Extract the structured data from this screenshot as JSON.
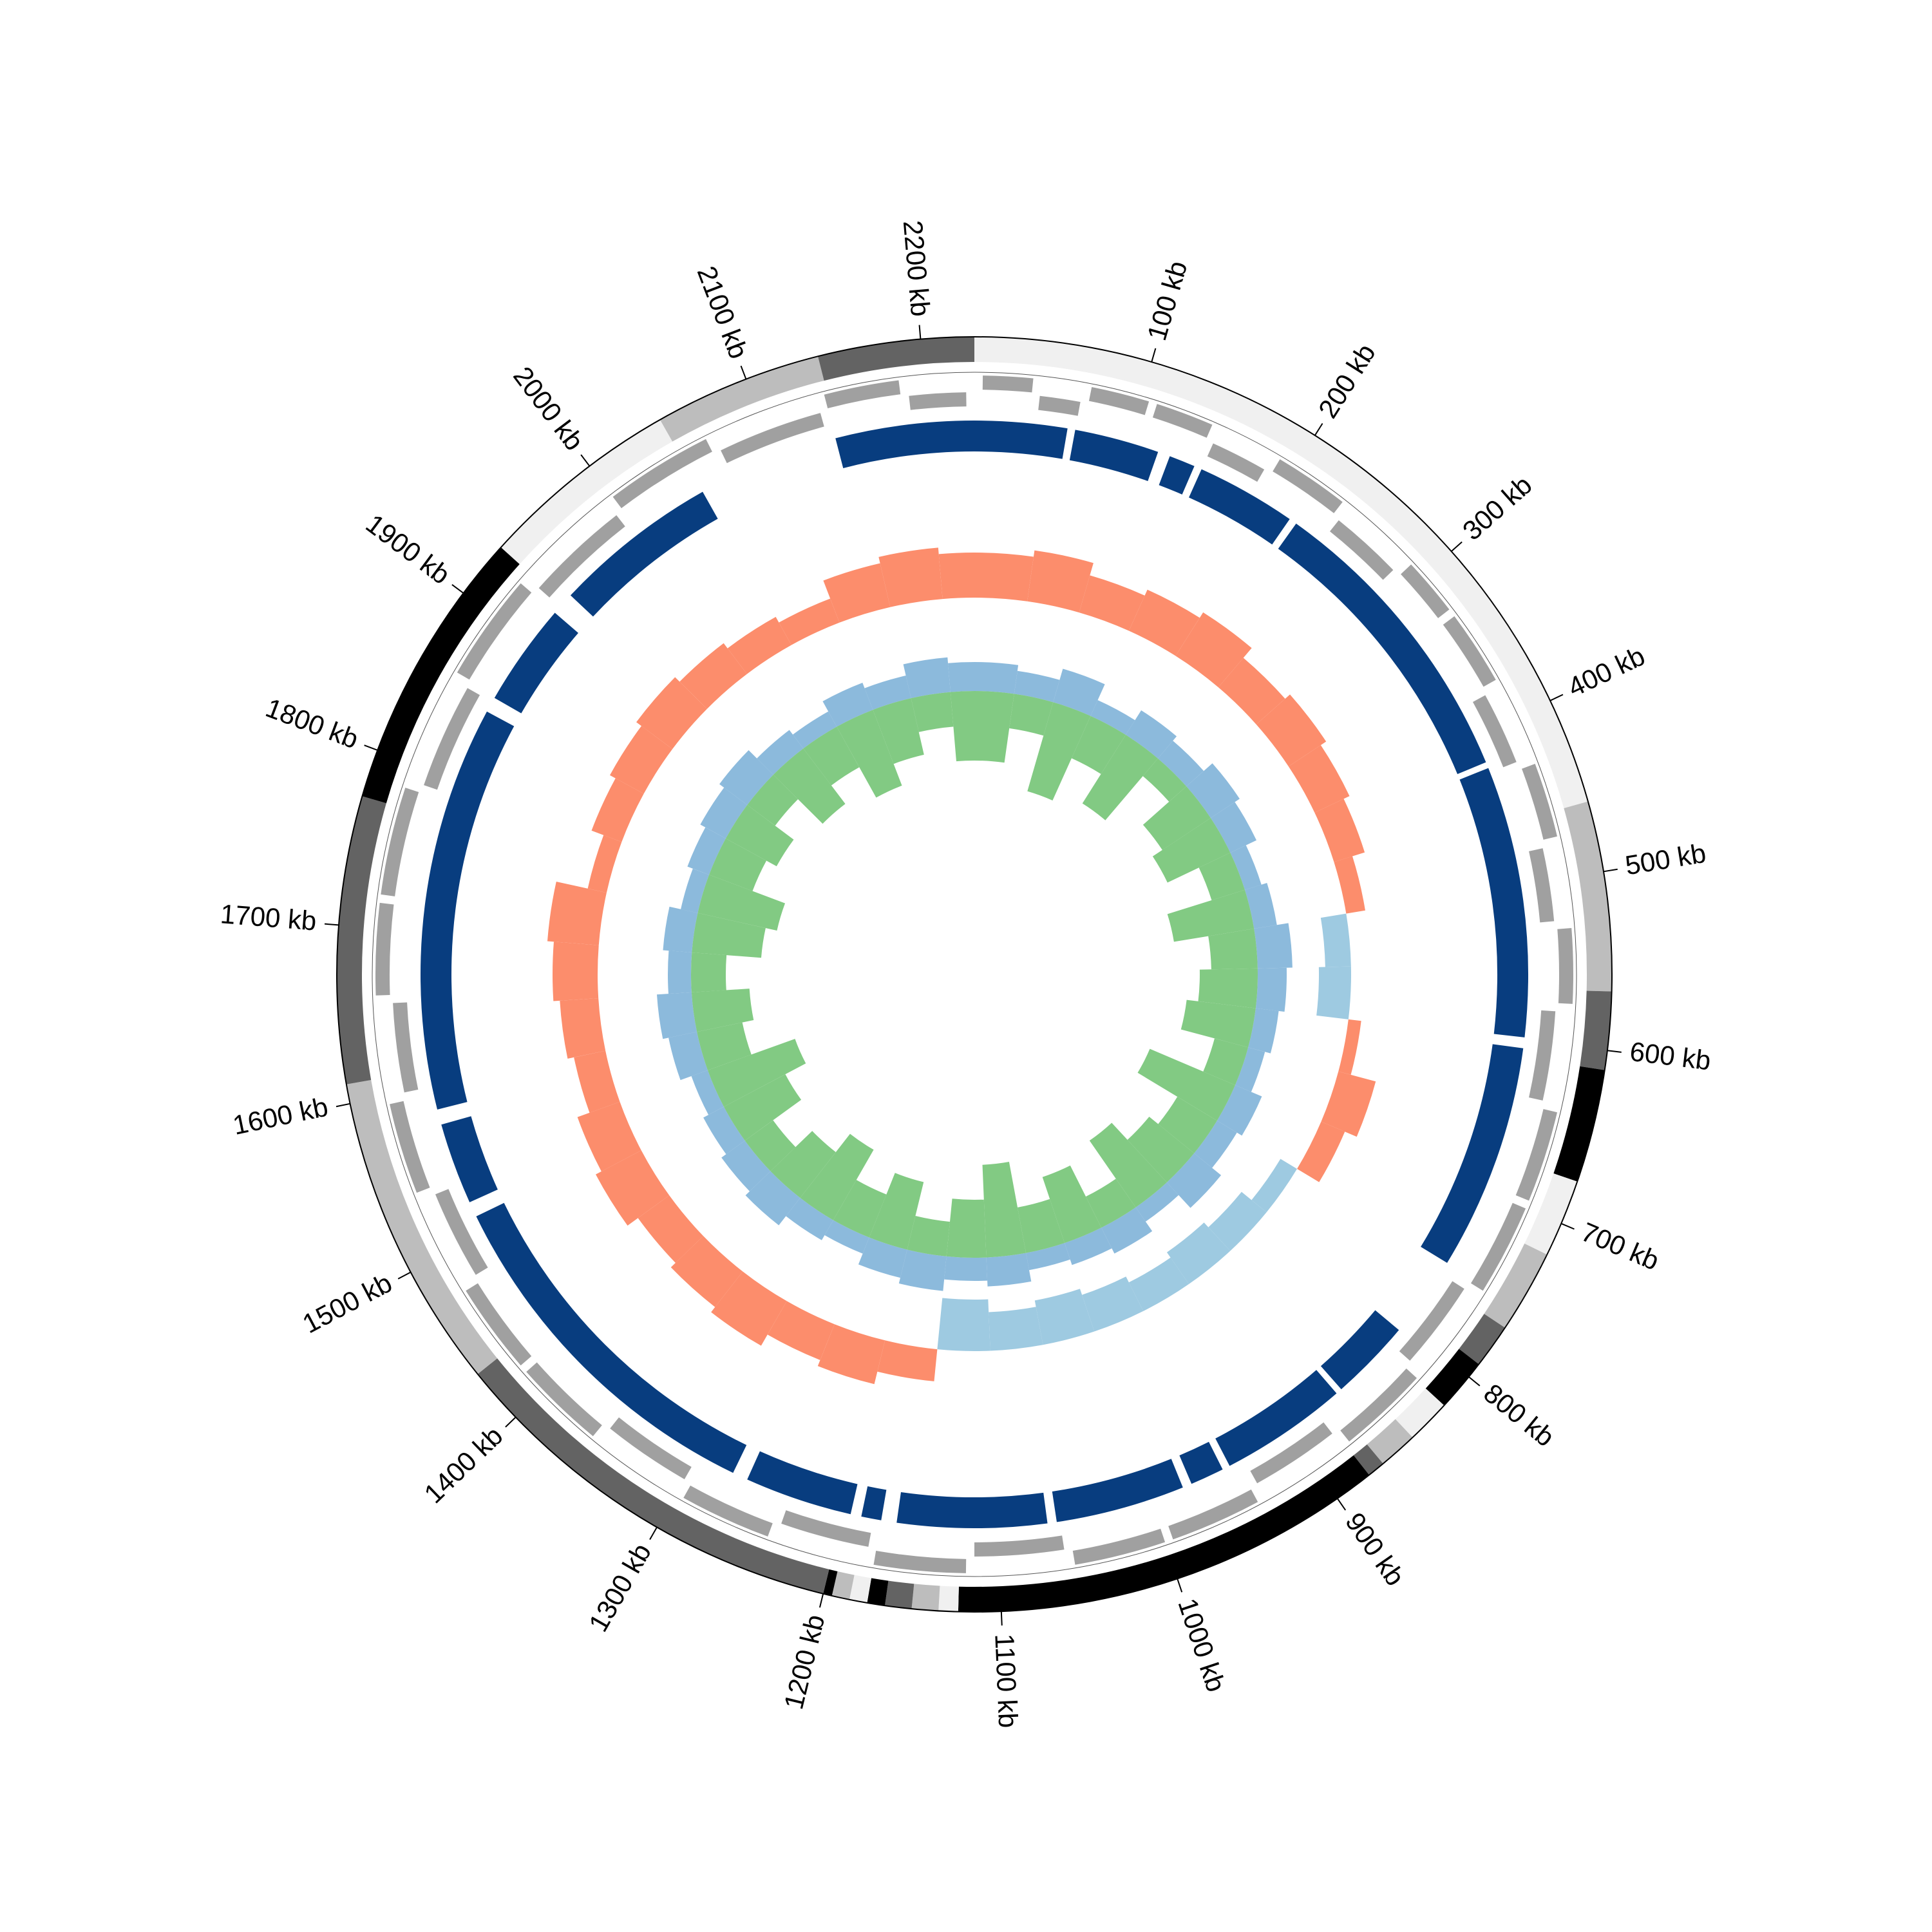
{
  "chart_data": {
    "type": "circular",
    "xlim": [
      0,
      2230
    ],
    "xticks": [
      {
        "value": 100,
        "label": "100 kb"
      },
      {
        "value": 200,
        "label": "200 kb"
      },
      {
        "value": 300,
        "label": "300 kb"
      },
      {
        "value": 400,
        "label": "400 kb"
      },
      {
        "value": 500,
        "label": "500 kb"
      },
      {
        "value": 600,
        "label": "600 kb"
      },
      {
        "value": 700,
        "label": "700 kb"
      },
      {
        "value": 800,
        "label": "800 kb"
      },
      {
        "value": 900,
        "label": "900 kb"
      },
      {
        "value": 1000,
        "label": "1000 kb"
      },
      {
        "value": 1100,
        "label": "1100 kb"
      },
      {
        "value": 1200,
        "label": "1200 kb"
      },
      {
        "value": 1300,
        "label": "1300 kb"
      },
      {
        "value": 1400,
        "label": "1400 kb"
      },
      {
        "value": 1500,
        "label": "1500 kb"
      },
      {
        "value": 1600,
        "label": "1600 kb"
      },
      {
        "value": 1700,
        "label": "1700 kb"
      },
      {
        "value": 1800,
        "label": "1800 kb"
      },
      {
        "value": 1900,
        "label": "1900 kb"
      },
      {
        "value": 2000,
        "label": "2000 kb"
      },
      {
        "value": 2100,
        "label": "2100 kb"
      },
      {
        "value": 2200,
        "label": "2200 kb"
      }
    ],
    "segments": {
      "starts": [
        0,
        460,
        567,
        611,
        675,
        719,
        766,
        791,
        821,
        846,
        868,
        878,
        1124,
        1135,
        1150,
        1165,
        1175,
        1185,
        1195,
        1200,
        1432,
        1611,
        1773,
        1933,
        2047,
        2142
      ],
      "ends": [
        460,
        567,
        611,
        675,
        719,
        766,
        791,
        821,
        846,
        868,
        878,
        1124,
        1135,
        1150,
        1165,
        1175,
        1185,
        1195,
        1200,
        1432,
        1611,
        1773,
        1933,
        2047,
        2142,
        2230
      ],
      "colors": [
        "#f0f0f0",
        "#bdbdbd",
        "#636363",
        "#000000",
        "#f0f0f0",
        "#bdbdbd",
        "#636363",
        "#000000",
        "#f0f0f0",
        "#bdbdbd",
        "#636363",
        "#000000",
        "#f0f0f0",
        "#bdbdbd",
        "#636363",
        "#000000",
        "#f0f0f0",
        "#bdbdbd",
        "#000000",
        "#636363",
        "#bdbdbd",
        "#636363",
        "#000000",
        "#f0f0f0",
        "#bdbdbd",
        "#636363"
      ]
    },
    "genes": {
      "color": "#a0a0a0",
      "starts": [
        5,
        40,
        70,
        110,
        150,
        190,
        240,
        290,
        330,
        380,
        430,
        480,
        530,
        580,
        640,
        700,
        760,
        820,
        880,
        940,
        1000,
        1060,
        1120,
        1180,
        1240,
        1300,
        1360,
        1420,
        1480,
        1540,
        1600,
        1660,
        1720,
        1790,
        1860,
        1930,
        2000,
        2070,
        2140,
        2190
      ],
      "ends": [
        35,
        65,
        105,
        145,
        185,
        235,
        285,
        325,
        375,
        425,
        475,
        525,
        575,
        635,
        695,
        755,
        815,
        875,
        935,
        995,
        1055,
        1115,
        1175,
        1235,
        1295,
        1355,
        1415,
        1475,
        1535,
        1595,
        1655,
        1715,
        1785,
        1855,
        1925,
        1995,
        2065,
        2135,
        2185,
        2225
      ],
      "strand": [
        1,
        -1,
        1,
        1,
        -1,
        1,
        -1,
        1,
        1,
        -1,
        1,
        -1,
        1,
        -1,
        1,
        1,
        -1,
        1,
        -1,
        1,
        1,
        -1,
        1,
        -1,
        1,
        -1,
        1,
        1,
        -1,
        1,
        -1,
        1,
        1,
        -1,
        1,
        -1,
        1,
        -1,
        1,
        -1
      ]
    },
    "blocks": {
      "color": "#083d7f",
      "starts": [
        0,
        65,
        128,
        150,
        220,
        422,
        605,
        805,
        862,
        950,
        978,
        1068,
        1175,
        1195,
        1275,
        1522,
        1585,
        1858,
        1940,
        2140
      ],
      "ends": [
        60,
        120,
        145,
        215,
        418,
        598,
        752,
        858,
        945,
        972,
        1062,
        1165,
        1188,
        1265,
        1512,
        1575,
        1848,
        1925,
        2048,
        2230
      ]
    },
    "x": [
      0,
      50,
      100,
      150,
      200,
      250,
      300,
      350,
      400,
      450,
      500,
      550,
      600,
      650,
      700,
      750,
      800,
      850,
      900,
      950,
      1000,
      1050,
      1100,
      1150,
      1200,
      1250,
      1300,
      1350,
      1400,
      1450,
      1500,
      1550,
      1600,
      1650,
      1700,
      1750,
      1800,
      1850,
      1900,
      1950,
      2000,
      2050,
      2100,
      2150,
      2200
    ],
    "ylim": [
      -1,
      1
    ],
    "gc_content": {
      "colors": [
        "#fc8d6c",
        "#9ecae1"
      ],
      "values": [
        0.7,
        0.8,
        0.6,
        0.7,
        0.8,
        0.6,
        0.7,
        0.6,
        0.5,
        0.3,
        -0.4,
        -0.5,
        0.2,
        0.6,
        0.4,
        -0.3,
        -0.5,
        -0.6,
        -0.5,
        -0.6,
        -0.7,
        -0.6,
        -0.8,
        0.5,
        0.7,
        0.6,
        0.8,
        0.7,
        0.6,
        0.8,
        0.7,
        0.5,
        0.6,
        0.7,
        0.8,
        0.3,
        0.5,
        0.6,
        0.7,
        0.6,
        0.5,
        0.4,
        0.7,
        0.8,
        0.7
      ]
    },
    "gc_skew": [
      {
        "color": "#7fb3d8",
        "values": [
          0.5,
          0.4,
          0.6,
          0.3,
          0.5,
          0.4,
          0.6,
          0.5,
          0.3,
          0.4,
          0.6,
          0.5,
          0.4,
          0.3,
          0.5,
          0.4,
          0.6,
          0.3,
          0.5,
          0.4,
          0.3,
          0.5,
          0.4,
          0.6,
          0.5,
          0.3,
          0.4,
          0.6,
          0.5,
          0.4,
          0.3,
          0.5,
          0.6,
          0.4,
          0.5,
          0.3,
          0.4,
          0.5,
          0.6,
          0.4,
          0.3,
          0.5,
          0.4,
          0.6,
          0.5
        ]
      },
      {
        "color": "#74c476",
        "values": [
          0.6,
          0.3,
          0.8,
          0.4,
          0.7,
          0.2,
          0.5,
          0.6,
          0.3,
          0.7,
          0.4,
          0.5,
          0.6,
          0.3,
          0.8,
          0.4,
          0.5,
          0.7,
          0.3,
          0.6,
          0.4,
          0.8,
          0.5,
          0.3,
          0.6,
          0.4,
          0.7,
          0.5,
          0.3,
          0.6,
          0.8,
          0.4,
          0.5,
          0.3,
          0.6,
          0.7,
          0.4,
          0.5,
          0.3,
          0.6,
          0.4,
          0.7,
          0.5,
          0.3,
          0.6
        ]
      }
    ]
  }
}
